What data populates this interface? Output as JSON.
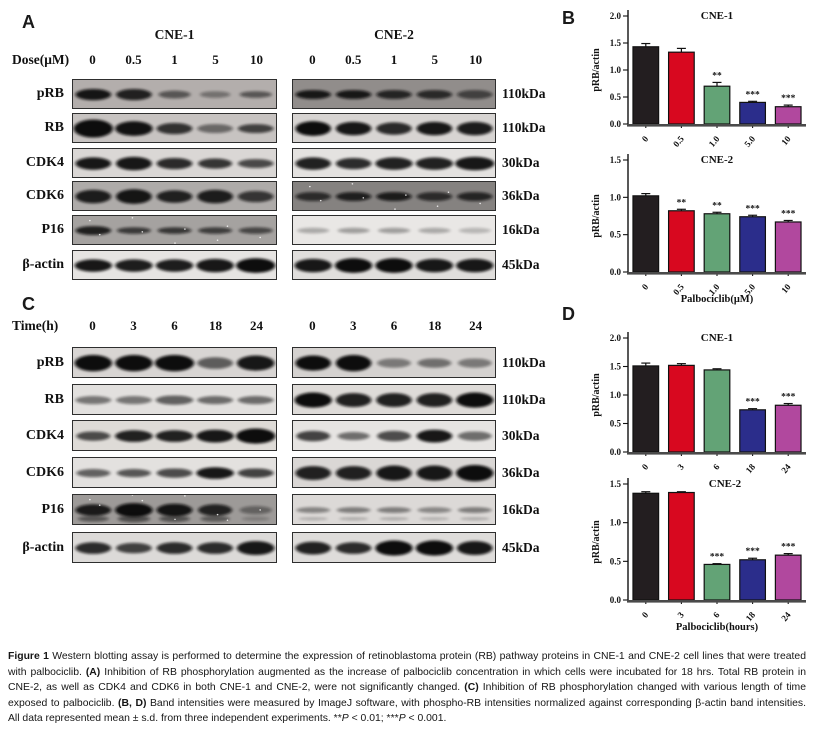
{
  "figure": {
    "panel_a": {
      "label": "A",
      "group_titles": [
        "CNE-1",
        "CNE-2"
      ],
      "lane_header": "Dose(μM)",
      "lane_labels": [
        "0",
        "0.5",
        "1",
        "5",
        "10"
      ],
      "rows": [
        {
          "protein": "pRB",
          "kda": "110kDa",
          "left": {
            "bg": "#b3aeac",
            "bands": [
              0.95,
              0.88,
              [
                0.55,
                0.9,
                0.7
              ],
              [
                0.38,
                0.85,
                0.6
              ],
              [
                0.55,
                0.9,
                0.6
              ]
            ]
          },
          "right": {
            "bg": "#918d8b",
            "thick": 0.8,
            "bands": [
              0.92,
              0.92,
              0.82,
              0.78,
              0.6
            ]
          }
        },
        {
          "protein": "RB",
          "kda": "110kDa",
          "left": {
            "bg": "#c7c3c1",
            "bands": [
              [
                1,
                1.1,
                1.6
              ],
              [
                0.97,
                1.05,
                1.3
              ],
              [
                0.8,
                1,
                1
              ],
              [
                0.5,
                1,
                0.8
              ],
              [
                0.72,
                1,
                0.8
              ]
            ]
          },
          "right": {
            "bg": "#d7d4d2",
            "bands": [
              [
                1,
                1,
                1.3
              ],
              [
                0.95,
                1,
                1.2
              ],
              [
                0.85,
                1,
                1.1
              ],
              [
                0.95,
                1,
                1.2
              ],
              [
                0.92,
                1,
                1.2
              ]
            ]
          }
        },
        {
          "protein": "CDK4",
          "kda": "30kDa",
          "left": {
            "bg": "#dad7d5",
            "bands": [
              [
                0.95,
                1,
                1.1
              ],
              [
                0.95,
                1,
                1.2
              ],
              0.85,
              [
                0.8,
                0.95,
                0.9
              ],
              [
                0.7,
                1,
                0.8
              ]
            ]
          },
          "right": {
            "bg": "#e4e2e0",
            "bands": [
              [
                0.9,
                1,
                1.1
              ],
              [
                0.85,
                1,
                1
              ],
              [
                0.9,
                1.05,
                1.1
              ],
              [
                0.9,
                1.05,
                1.1
              ],
              [
                0.95,
                1.1,
                1.2
              ]
            ]
          }
        },
        {
          "protein": "CDK6",
          "kda": "36kDa",
          "left": {
            "bg": "#aeaba9",
            "bands": [
              [
                0.9,
                1,
                1.2
              ],
              [
                0.95,
                1,
                1.3
              ],
              [
                0.88,
                1,
                1.1
              ],
              [
                0.9,
                1,
                1.2
              ],
              [
                0.75,
                1,
                1
              ]
            ]
          },
          "right": {
            "bg": "#858280",
            "thick": 0.8,
            "speckle": true,
            "bands": [
              0.75,
              0.85,
              0.88,
              0.75,
              0.8
            ]
          }
        },
        {
          "protein": "P16",
          "kda": "16kDa",
          "left": {
            "bg": "#a5a2a0",
            "speckle": true,
            "bands": [
              [
                0.88,
                1,
                0.8
              ],
              [
                0.7,
                0.95,
                0.6
              ],
              [
                0.72,
                0.95,
                0.6
              ],
              [
                0.68,
                0.95,
                0.6
              ],
              [
                0.62,
                0.95,
                0.6
              ]
            ]
          },
          "right": {
            "bg": "#e9e7e5",
            "bands": [
              [
                0.28,
                0.9,
                0.5
              ],
              [
                0.33,
                0.9,
                0.5
              ],
              [
                0.33,
                0.9,
                0.5
              ],
              [
                0.28,
                0.9,
                0.5
              ],
              [
                0.22,
                0.9,
                0.5
              ]
            ]
          }
        },
        {
          "protein": "β-actin",
          "kda": "45kDa",
          "left": {
            "bg": "#e6e4e2",
            "bands": [
              [
                0.95,
                1.05,
                1.1
              ],
              [
                0.92,
                1.05,
                1.1
              ],
              [
                0.92,
                1.05,
                1.1
              ],
              [
                0.95,
                1.05,
                1.2
              ],
              [
                1,
                1.1,
                1.3
              ]
            ]
          },
          "right": {
            "bg": "#e0dedc",
            "bands": [
              [
                0.95,
                1.05,
                1.2
              ],
              [
                1,
                1.05,
                1.3
              ],
              [
                1,
                1.05,
                1.3
              ],
              [
                0.95,
                1.05,
                1.2
              ],
              [
                0.95,
                1.05,
                1.2
              ]
            ]
          }
        }
      ]
    },
    "panel_b_label": "B",
    "panel_c": {
      "label": "C",
      "lane_header": "Time(h)",
      "lane_labels": [
        "0",
        "3",
        "6",
        "18",
        "24"
      ],
      "rows": [
        {
          "protein": "pRB",
          "kda": "110kDa",
          "left": {
            "bg": "#d8d5d3",
            "bands": [
              [
                1,
                1.05,
                1.4
              ],
              [
                1,
                1.05,
                1.4
              ],
              [
                1,
                1.1,
                1.4
              ],
              [
                0.6,
                1,
                1
              ],
              [
                0.95,
                1.05,
                1.3
              ]
            ]
          },
          "right": {
            "bg": "#d5d2d0",
            "bands": [
              [
                1,
                1,
                1.3
              ],
              [
                1,
                1,
                1.4
              ],
              [
                0.45,
                0.95,
                0.8
              ],
              [
                0.5,
                0.95,
                0.8
              ],
              [
                0.45,
                0.95,
                0.8
              ]
            ]
          }
        },
        {
          "protein": "RB",
          "kda": "110kDa",
          "left": {
            "bg": "#e2e0de",
            "bands": [
              [
                0.5,
                1,
                0.7
              ],
              [
                0.5,
                1,
                0.7
              ],
              [
                0.6,
                1.05,
                0.8
              ],
              [
                0.55,
                1,
                0.7
              ],
              [
                0.55,
                1,
                0.7
              ]
            ]
          },
          "right": {
            "bg": "#dedbd8",
            "bands": [
              [
                1,
                1.05,
                1.3
              ],
              [
                0.9,
                1,
                1.2
              ],
              [
                0.9,
                1,
                1.2
              ],
              [
                0.9,
                1,
                1.2
              ],
              [
                1,
                1.05,
                1.3
              ]
            ]
          }
        },
        {
          "protein": "CDK4",
          "kda": "30kDa",
          "left": {
            "bg": "#dedbd7",
            "bands": [
              [
                0.7,
                0.95,
                0.8
              ],
              [
                0.9,
                1.05,
                1
              ],
              [
                0.9,
                1.05,
                1
              ],
              [
                0.95,
                1.05,
                1.1
              ],
              [
                1,
                1.1,
                1.3
              ]
            ]
          },
          "right": {
            "bg": "#e6e4e2",
            "bands": [
              [
                0.75,
                0.95,
                0.9
              ],
              [
                0.55,
                0.9,
                0.7
              ],
              [
                0.7,
                0.95,
                0.9
              ],
              [
                0.95,
                1,
                1.1
              ],
              [
                0.55,
                0.95,
                0.8
              ]
            ]
          }
        },
        {
          "protein": "CDK6",
          "kda": "36kDa",
          "left": {
            "bg": "#e3e1df",
            "bands": [
              [
                0.6,
                0.95,
                0.7
              ],
              [
                0.65,
                0.95,
                0.7
              ],
              [
                0.7,
                1,
                0.8
              ],
              [
                0.95,
                1.05,
                1
              ],
              [
                0.75,
                1,
                0.8
              ]
            ]
          },
          "right": {
            "bg": "#dad7d5",
            "bands": [
              [
                0.9,
                1,
                1.2
              ],
              [
                0.9,
                1,
                1.2
              ],
              [
                0.95,
                1,
                1.3
              ],
              [
                0.95,
                1,
                1.3
              ],
              [
                1,
                1.05,
                1.4
              ]
            ]
          }
        },
        {
          "protein": "P16",
          "kda": "16kDa",
          "left": {
            "bg": "#9d9a98",
            "double": true,
            "speckle": true,
            "bands": [
              [
                0.9,
                1,
                1
              ],
              [
                1,
                1.05,
                1.2
              ],
              [
                0.95,
                1,
                1.1
              ],
              [
                0.85,
                0.95,
                1
              ],
              [
                0.4,
                0.9,
                0.7
              ]
            ]
          },
          "right": {
            "bg": "#dcd9d7",
            "double": true,
            "bands": [
              [
                0.42,
                0.95,
                0.5
              ],
              [
                0.45,
                0.95,
                0.5
              ],
              [
                0.45,
                0.95,
                0.5
              ],
              [
                0.4,
                0.95,
                0.5
              ],
              [
                0.45,
                0.95,
                0.5
              ]
            ]
          }
        },
        {
          "protein": "β-actin",
          "kda": "45kDa",
          "left": {
            "bg": "#dcdad8",
            "bands": [
              [
                0.85,
                1,
                1
              ],
              [
                0.75,
                1,
                0.9
              ],
              [
                0.85,
                1,
                1
              ],
              [
                0.85,
                1,
                1
              ],
              [
                0.95,
                1.05,
                1.2
              ]
            ]
          },
          "right": {
            "bg": "#dedcda",
            "bands": [
              [
                0.9,
                1,
                1.1
              ],
              [
                0.85,
                1,
                1
              ],
              [
                1,
                1.05,
                1.3
              ],
              [
                1,
                1.05,
                1.3
              ],
              [
                0.95,
                1,
                1.2
              ]
            ]
          }
        }
      ]
    },
    "panel_d_label": "D"
  },
  "bar_colors": [
    "#231e20",
    "#d8081f",
    "#63a376",
    "#2b2d8b",
    "#b1489e"
  ],
  "chart_data": [
    {
      "type": "bar",
      "panel": "B",
      "title": "CNE-1",
      "ylabel": "pRB/actin",
      "xlabel": "",
      "ylim": [
        0,
        2.0
      ],
      "yticks": [
        0,
        0.5,
        1.0,
        1.5,
        2.0
      ],
      "categories": [
        "0",
        "0.5",
        "1.0",
        "5.0",
        "10"
      ],
      "values": [
        1.43,
        1.33,
        0.7,
        0.4,
        0.32
      ],
      "errors": [
        0.06,
        0.07,
        0.07,
        0.02,
        0.03
      ],
      "sig": [
        "",
        "",
        "**",
        "***",
        "***"
      ],
      "legend": "none",
      "grid": false
    },
    {
      "type": "bar",
      "panel": "B",
      "title": "CNE-2",
      "ylabel": "pRB/actin",
      "xlabel": "Palbociclib(μM)",
      "ylim": [
        0,
        1.5
      ],
      "yticks": [
        0,
        0.5,
        1.0,
        1.5
      ],
      "categories": [
        "0",
        "0.5",
        "1.0",
        "5.0",
        "10"
      ],
      "values": [
        1.02,
        0.82,
        0.78,
        0.74,
        0.67
      ],
      "errors": [
        0.03,
        0.02,
        0.02,
        0.02,
        0.02
      ],
      "sig": [
        "",
        "**",
        "**",
        "***",
        "***"
      ],
      "legend": "none",
      "grid": false
    },
    {
      "type": "bar",
      "panel": "D",
      "title": "CNE-1",
      "ylabel": "pRB/actin",
      "xlabel": "",
      "ylim": [
        0,
        2.0
      ],
      "yticks": [
        0,
        0.5,
        1.0,
        1.5,
        2.0
      ],
      "categories": [
        "0",
        "3",
        "6",
        "18",
        "24"
      ],
      "values": [
        1.51,
        1.52,
        1.44,
        0.74,
        0.82
      ],
      "errors": [
        0.05,
        0.03,
        0.02,
        0.02,
        0.03
      ],
      "sig": [
        "",
        "",
        "",
        "***",
        "***"
      ],
      "legend": "none",
      "grid": false
    },
    {
      "type": "bar",
      "panel": "D",
      "title": "CNE-2",
      "ylabel": "pRB/actin",
      "xlabel": "Palbociclib(hours)",
      "ylim": [
        0,
        1.5
      ],
      "yticks": [
        0,
        0.5,
        1.0,
        1.5
      ],
      "categories": [
        "0",
        "3",
        "6",
        "18",
        "24"
      ],
      "values": [
        1.38,
        1.39,
        0.46,
        0.52,
        0.58
      ],
      "errors": [
        0.02,
        0.01,
        0.01,
        0.02,
        0.02
      ],
      "sig": [
        "",
        "",
        "***",
        "***",
        "***"
      ],
      "legend": "none",
      "grid": false
    }
  ],
  "caption": {
    "segments": [
      {
        "text": "Figure 1",
        "bold": true
      },
      {
        "text": " Western blotting assay is performed to determine the expression of retinoblastoma protein (RB) pathway proteins in CNE-1 and CNE-2 cell lines that were treated with palbociclib. "
      },
      {
        "text": "(A)",
        "bold": true
      },
      {
        "text": " Inhibition of RB phosphorylation augmented as the increase of palbociclib concentration in which cells were incubated for 18 hrs. Total RB protein in CNE-2, as well as CDK4 and CDK6 in both CNE-1 and CNE-2, were not significantly changed. "
      },
      {
        "text": "(C)",
        "bold": true
      },
      {
        "text": " Inhibition of RB phosphorylation changed with various length of time exposed to palbociclib. "
      },
      {
        "text": "(B, D)",
        "bold": true
      },
      {
        "text": " Band intensities were measured by ImageJ software, with phospho-RB intensities normalized against corresponding β-actin band intensities. All data represented mean ± s.d. from three independent experiments. **"
      },
      {
        "text": "P",
        "italic": true
      },
      {
        "text": " < 0.01; ***"
      },
      {
        "text": "P",
        "italic": true
      },
      {
        "text": " < 0.001."
      }
    ]
  }
}
